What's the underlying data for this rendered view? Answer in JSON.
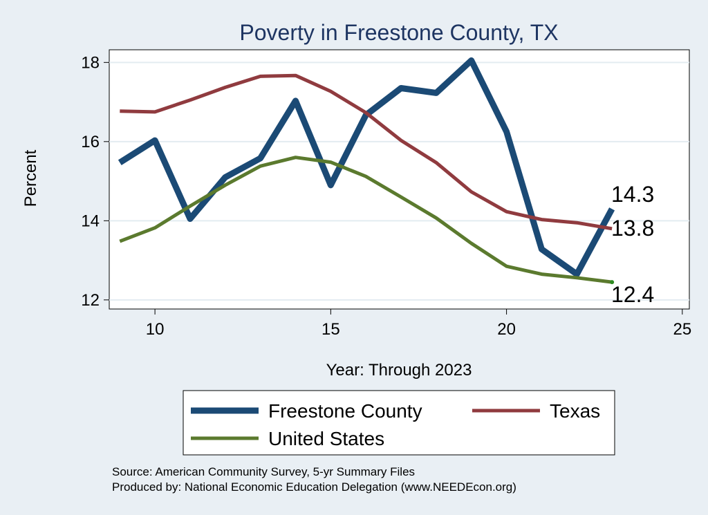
{
  "chart_data": {
    "type": "line",
    "title": "Poverty in Freestone County, TX",
    "xlabel": "Year: Through 2023",
    "ylabel": "Percent",
    "xlim": [
      8.7,
      25.2
    ],
    "ylim": [
      11.77,
      18.32
    ],
    "xticks": [
      10,
      15,
      20,
      25
    ],
    "yticks": [
      12,
      14,
      16,
      18
    ],
    "x": [
      9,
      10,
      11,
      12,
      13,
      14,
      15,
      16,
      17,
      18,
      19,
      20,
      21,
      22,
      23
    ],
    "series": [
      {
        "name": "Freestone County",
        "color": "#1b4a75",
        "values": [
          15.47,
          16.03,
          14.05,
          15.1,
          15.58,
          17.03,
          14.9,
          16.67,
          17.35,
          17.23,
          18.05,
          16.25,
          13.28,
          12.65,
          14.3
        ],
        "end_label": "14.3"
      },
      {
        "name": "Texas",
        "color": "#903b3f",
        "values": [
          16.77,
          16.75,
          17.05,
          17.37,
          17.65,
          17.67,
          17.27,
          16.73,
          16.03,
          15.47,
          14.73,
          14.23,
          14.03,
          13.95,
          13.8
        ],
        "end_label": "13.8"
      },
      {
        "name": "United States",
        "color": "#5b7a2e",
        "values": [
          13.48,
          13.82,
          14.37,
          14.9,
          15.38,
          15.6,
          15.48,
          15.12,
          14.6,
          14.07,
          13.43,
          12.85,
          12.65,
          12.56,
          12.45
        ],
        "end_label": "12.4"
      }
    ],
    "legend_position": "bottom"
  },
  "notes": {
    "source": "Source: American Community Survey, 5-yr Summary Files",
    "produced_by": "Produced by: National Economic Education Delegation (www.NEEDEcon.org)"
  }
}
